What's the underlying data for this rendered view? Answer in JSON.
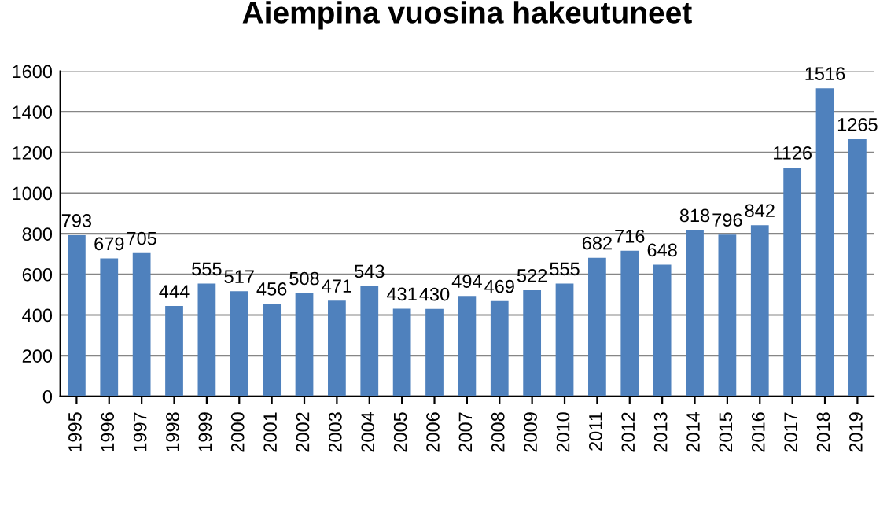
{
  "chart_data": {
    "type": "bar",
    "title": "Aiempina vuosina hakeutuneet",
    "categories": [
      "1995",
      "1996",
      "1997",
      "1998",
      "1999",
      "2000",
      "2001",
      "2002",
      "2003",
      "2004",
      "2005",
      "2006",
      "2007",
      "2008",
      "2009",
      "2010",
      "2011",
      "2012",
      "2013",
      "2014",
      "2015",
      "2016",
      "2017",
      "2018",
      "2019"
    ],
    "values": [
      793,
      679,
      705,
      444,
      555,
      517,
      456,
      508,
      471,
      543,
      431,
      430,
      494,
      469,
      522,
      555,
      682,
      716,
      648,
      818,
      796,
      842,
      1126,
      1516,
      1265
    ],
    "color": "#4f81bd",
    "ylim": [
      0,
      1600
    ],
    "yticks": [
      0,
      200,
      400,
      600,
      800,
      1000,
      1200,
      1400,
      1600
    ],
    "grid": "y",
    "data_labels": true
  }
}
